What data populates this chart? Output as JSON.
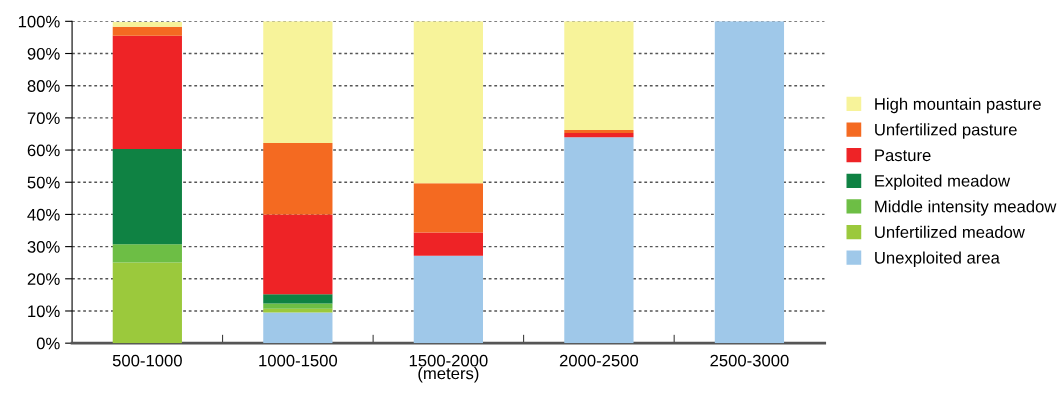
{
  "chart_data": {
    "type": "bar",
    "stacked": true,
    "xlabel": "(meters)",
    "categories": [
      "500-1000",
      "1000-1500",
      "1500-2000",
      "2000-2500",
      "2500-3000"
    ],
    "series": [
      {
        "name": "Unexploited area",
        "color": "#9fc8e9",
        "values": [
          0,
          9.5,
          27.2,
          64.0,
          100
        ]
      },
      {
        "name": "Unfertilized meadow",
        "color": "#9bc93c",
        "values": [
          25.1,
          1.2,
          0,
          0,
          0
        ]
      },
      {
        "name": "Middle intensity meadow",
        "color": "#6dbe45",
        "values": [
          5.6,
          1.6,
          0,
          0,
          0
        ]
      },
      {
        "name": "Exploited meadow",
        "color": "#0f8243",
        "values": [
          29.6,
          2.9,
          0,
          0,
          0
        ]
      },
      {
        "name": "Pasture",
        "color": "#ee2326",
        "values": [
          35.2,
          24.8,
          7.2,
          1.3,
          0
        ]
      },
      {
        "name": "Unfertilized pasture",
        "color": "#f46a21",
        "values": [
          2.8,
          22.2,
          15.3,
          0.9,
          0
        ]
      },
      {
        "name": "High mountain pasture",
        "color": "#f7f39a",
        "values": [
          1.5,
          37.8,
          50.3,
          33.8,
          0
        ]
      }
    ],
    "ylim": [
      0,
      100
    ],
    "yticks": [
      {
        "value": 0,
        "label": "0%"
      },
      {
        "value": 10,
        "label": "10%"
      },
      {
        "value": 20,
        "label": "20%"
      },
      {
        "value": 30,
        "label": "30%"
      },
      {
        "value": 40,
        "label": "40%"
      },
      {
        "value": 50,
        "label": "50%"
      },
      {
        "value": 60,
        "label": "60%"
      },
      {
        "value": 70,
        "label": "70%"
      },
      {
        "value": 80,
        "label": "80%"
      },
      {
        "value": 90,
        "label": "90%"
      },
      {
        "value": 100,
        "label": "100%"
      }
    ],
    "grid": "y",
    "legend": "right"
  }
}
